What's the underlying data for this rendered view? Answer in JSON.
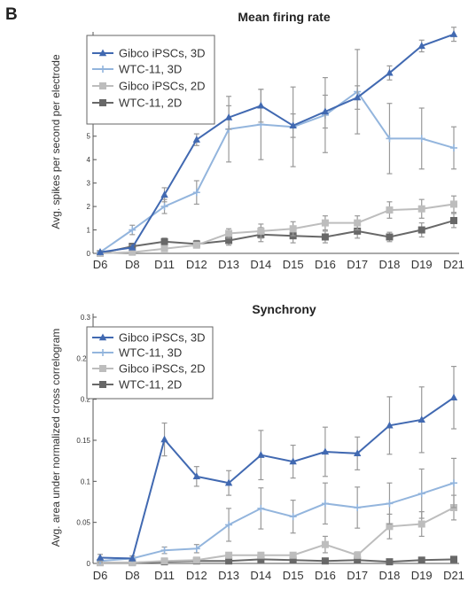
{
  "panel_label": "B",
  "colors": {
    "gibco_3d": "#4169b1",
    "wtc11_3d": "#93b5dd",
    "gibco_2d": "#bdbdbd",
    "wtc11_2d": "#686868",
    "error_bar": "#999999",
    "axis": "#555555"
  },
  "chart_data": [
    {
      "type": "line",
      "title": "Mean firing rate",
      "xlabel": "",
      "ylabel": "Avg. spikes per second per electrode",
      "categories": [
        "D6",
        "D8",
        "D11",
        "D12",
        "D13",
        "D14",
        "D15",
        "D16",
        "D17",
        "D18",
        "D19",
        "D21"
      ],
      "ylim": [
        0,
        9.3
      ],
      "yticks": [
        0,
        1,
        2,
        3,
        4,
        5,
        6,
        7,
        8
      ],
      "ytick_labels": [
        "0",
        "1",
        "2",
        "3",
        "4",
        "5",
        "6",
        "7",
        "8"
      ],
      "legend_position": "top-left",
      "series": [
        {
          "name": "Gibco iPSCs, 3D",
          "color": "#4169b1",
          "marker": "triangle",
          "values": [
            0.05,
            0.25,
            2.5,
            4.85,
            5.8,
            6.3,
            5.45,
            6.05,
            6.65,
            7.7,
            8.85,
            9.35
          ],
          "errors": [
            0.05,
            0.1,
            0.3,
            0.25,
            0.5,
            0.7,
            0.5,
            0.7,
            0.5,
            0.3,
            0.25,
            0.3
          ]
        },
        {
          "name": "WTC-11, 3D",
          "color": "#93b5dd",
          "marker": "plus",
          "values": [
            0.05,
            1.0,
            2.0,
            2.6,
            5.3,
            5.5,
            5.4,
            5.9,
            6.9,
            4.9,
            4.9,
            4.5
          ],
          "errors": [
            0.05,
            0.2,
            0.3,
            0.5,
            1.4,
            1.5,
            1.7,
            1.6,
            1.8,
            1.5,
            1.3,
            0.9
          ]
        },
        {
          "name": "Gibco iPSCs, 2D",
          "color": "#bdbdbd",
          "marker": "square",
          "values": [
            0.0,
            0.05,
            0.2,
            0.35,
            0.85,
            0.95,
            1.05,
            1.3,
            1.3,
            1.85,
            1.9,
            2.1
          ],
          "errors": [
            0.0,
            0.05,
            0.1,
            0.1,
            0.2,
            0.3,
            0.3,
            0.3,
            0.3,
            0.35,
            0.4,
            0.35
          ]
        },
        {
          "name": "WTC-11, 2D",
          "color": "#686868",
          "marker": "square",
          "values": [
            0.0,
            0.3,
            0.5,
            0.4,
            0.55,
            0.8,
            0.75,
            0.7,
            0.95,
            0.7,
            1.0,
            1.4
          ],
          "errors": [
            0.0,
            0.1,
            0.15,
            0.15,
            0.2,
            0.3,
            0.3,
            0.25,
            0.3,
            0.2,
            0.3,
            0.3
          ]
        }
      ]
    },
    {
      "type": "line",
      "title": "Synchrony",
      "xlabel": "",
      "ylabel": "Avg. area under normalized cross correlogram",
      "categories": [
        "D6",
        "D8",
        "D11",
        "D12",
        "D13",
        "D14",
        "D15",
        "D16",
        "D17",
        "D18",
        "D19",
        "D21"
      ],
      "ylim": [
        0,
        0.3
      ],
      "yticks": [
        0,
        0.05,
        0.1,
        0.15,
        0.2,
        0.25,
        0.3
      ],
      "ytick_labels": [
        "0",
        "0.05",
        "0.1",
        "0.15",
        "0.2",
        "0.25",
        "0.3"
      ],
      "legend_position": "top-left",
      "series": [
        {
          "name": "Gibco iPSCs, 3D",
          "color": "#4169b1",
          "marker": "triangle",
          "values": [
            0.007,
            0.006,
            0.151,
            0.106,
            0.098,
            0.132,
            0.124,
            0.136,
            0.134,
            0.168,
            0.175,
            0.202
          ],
          "errors": [
            0.004,
            0.003,
            0.02,
            0.012,
            0.015,
            0.03,
            0.02,
            0.03,
            0.02,
            0.035,
            0.04,
            0.038
          ]
        },
        {
          "name": "WTC-11, 3D",
          "color": "#93b5dd",
          "marker": "plus",
          "values": [
            0.003,
            0.006,
            0.016,
            0.018,
            0.047,
            0.067,
            0.057,
            0.073,
            0.068,
            0.073,
            0.085,
            0.098
          ],
          "errors": [
            0.002,
            0.003,
            0.004,
            0.005,
            0.02,
            0.025,
            0.02,
            0.025,
            0.025,
            0.025,
            0.03,
            0.03
          ]
        },
        {
          "name": "Gibco iPSCs, 2D",
          "color": "#bdbdbd",
          "marker": "square",
          "values": [
            0.001,
            0.001,
            0.003,
            0.004,
            0.01,
            0.01,
            0.01,
            0.023,
            0.01,
            0.045,
            0.048,
            0.068
          ],
          "errors": [
            0.001,
            0.001,
            0.002,
            0.002,
            0.003,
            0.003,
            0.003,
            0.01,
            0.004,
            0.015,
            0.015,
            0.015
          ]
        },
        {
          "name": "WTC-11, 2D",
          "color": "#686868",
          "marker": "square",
          "values": [
            0.001,
            0.001,
            0.002,
            0.003,
            0.003,
            0.005,
            0.004,
            0.003,
            0.004,
            0.002,
            0.004,
            0.005
          ],
          "errors": [
            0.0,
            0.0,
            0.001,
            0.001,
            0.001,
            0.001,
            0.001,
            0.001,
            0.001,
            0.001,
            0.001,
            0.001
          ]
        }
      ]
    }
  ]
}
